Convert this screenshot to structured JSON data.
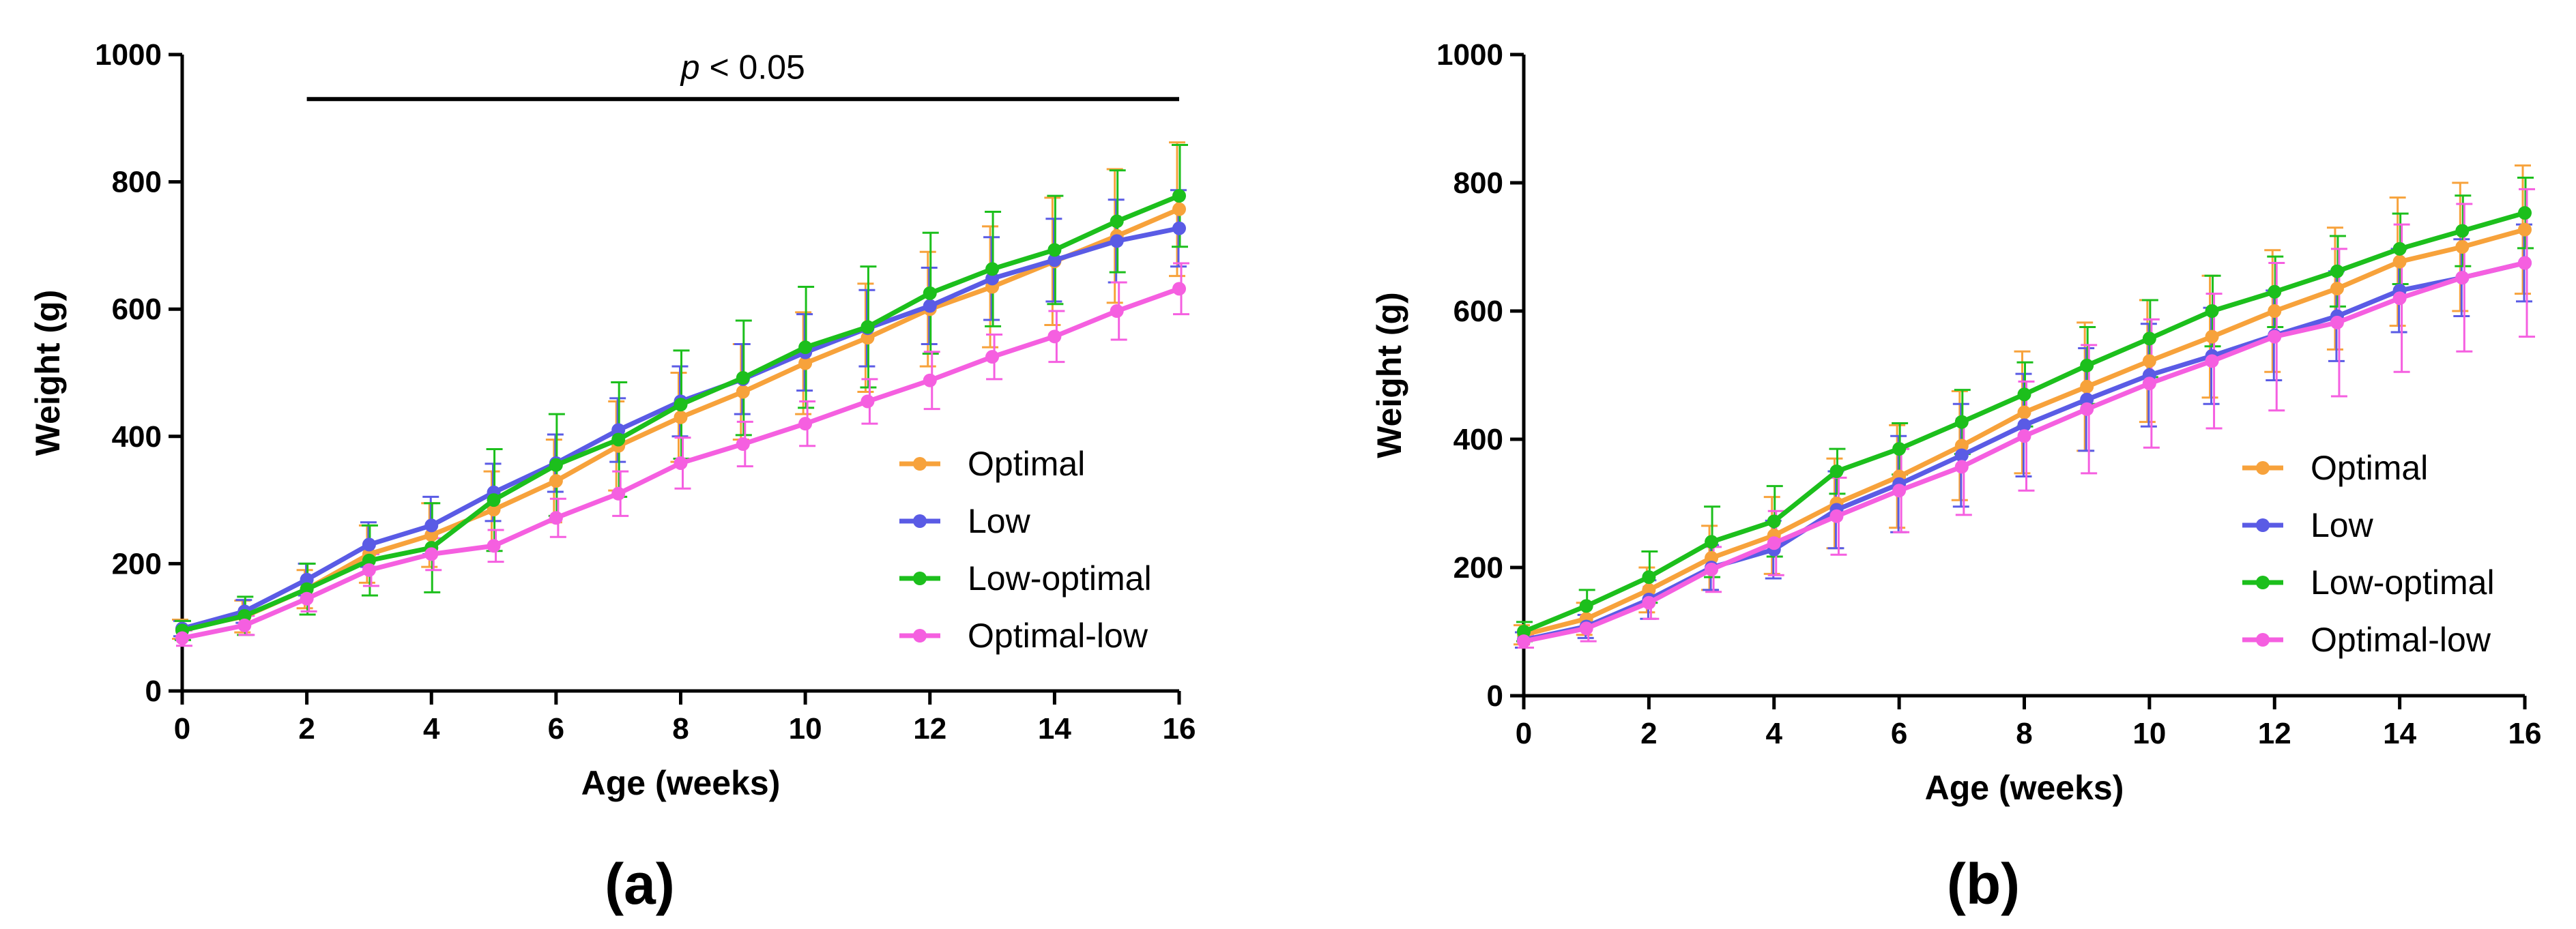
{
  "chart_data": [
    {
      "type": "line",
      "panel_label": "(a)",
      "xlabel": "Age (weeks)",
      "ylabel": "Weight (g)",
      "xlim": [
        0,
        16
      ],
      "ylim": [
        0,
        1000
      ],
      "xticks": [
        0,
        2,
        4,
        6,
        8,
        10,
        12,
        14,
        16
      ],
      "yticks": [
        0,
        200,
        400,
        600,
        800,
        1000
      ],
      "legend_position": "lower-right",
      "annotation": {
        "italic": "p",
        "text": " < 0.05",
        "x_start": 2,
        "x_end": 16,
        "y": 930
      },
      "x": [
        0,
        1,
        2,
        3,
        4,
        5,
        6,
        7,
        8,
        9,
        10,
        11,
        12,
        13,
        14,
        15,
        16
      ],
      "series": [
        {
          "name": "Optimal",
          "color": "#f7a23b",
          "values": [
            97,
            117,
            160,
            215,
            245,
            285,
            330,
            385,
            430,
            470,
            515,
            555,
            600,
            635,
            675,
            715,
            757
          ],
          "errors": [
            15,
            25,
            30,
            45,
            50,
            60,
            65,
            70,
            70,
            75,
            80,
            85,
            90,
            95,
            100,
            105,
            105
          ]
        },
        {
          "name": "Low",
          "color": "#5a5be5",
          "values": [
            98,
            125,
            175,
            230,
            260,
            312,
            358,
            410,
            455,
            490,
            532,
            570,
            605,
            648,
            677,
            707,
            727
          ],
          "errors": [
            12,
            18,
            25,
            35,
            45,
            45,
            45,
            50,
            55,
            55,
            60,
            60,
            60,
            65,
            65,
            65,
            60
          ]
        },
        {
          "name": "Low-optimal",
          "color": "#1cbf1c",
          "values": [
            95,
            118,
            160,
            205,
            225,
            300,
            355,
            395,
            450,
            492,
            540,
            572,
            625,
            663,
            693,
            738,
            778
          ],
          "errors": [
            15,
            30,
            40,
            55,
            70,
            80,
            80,
            90,
            85,
            90,
            95,
            95,
            95,
            90,
            85,
            80,
            80
          ]
        },
        {
          "name": "Optimal-low",
          "color": "#f55fe0",
          "values": [
            83,
            103,
            145,
            190,
            215,
            228,
            272,
            310,
            358,
            388,
            420,
            455,
            488,
            525,
            557,
            597,
            632
          ],
          "errors": [
            12,
            15,
            20,
            25,
            25,
            25,
            30,
            35,
            40,
            35,
            35,
            35,
            45,
            35,
            40,
            45,
            40
          ]
        }
      ]
    },
    {
      "type": "line",
      "panel_label": "(b)",
      "xlabel": "Age (weeks)",
      "ylabel": "Weight (g)",
      "xlim": [
        0,
        16
      ],
      "ylim": [
        0,
        1000
      ],
      "xticks": [
        0,
        2,
        4,
        6,
        8,
        10,
        12,
        14,
        16
      ],
      "yticks": [
        0,
        200,
        400,
        600,
        800,
        1000
      ],
      "legend_position": "lower-right",
      "x": [
        0,
        1,
        2,
        3,
        4,
        5,
        6,
        7,
        8,
        9,
        10,
        11,
        12,
        13,
        14,
        15,
        16
      ],
      "series": [
        {
          "name": "Optimal",
          "color": "#f7a23b",
          "values": [
            95,
            120,
            165,
            215,
            250,
            300,
            342,
            390,
            442,
            482,
            522,
            560,
            600,
            635,
            677,
            700,
            727
          ],
          "errors": [
            15,
            25,
            35,
            50,
            60,
            70,
            80,
            85,
            95,
            100,
            95,
            95,
            95,
            95,
            100,
            100,
            100
          ]
        },
        {
          "name": "Low",
          "color": "#5a5be5",
          "values": [
            87,
            108,
            150,
            200,
            228,
            290,
            330,
            375,
            422,
            462,
            500,
            530,
            562,
            592,
            632,
            652,
            675
          ],
          "errors": [
            12,
            18,
            30,
            35,
            45,
            60,
            75,
            80,
            80,
            80,
            80,
            75,
            70,
            70,
            65,
            60,
            60
          ]
        },
        {
          "name": "Low-optimal",
          "color": "#1cbf1c",
          "values": [
            100,
            140,
            185,
            240,
            272,
            350,
            385,
            427,
            470,
            515,
            557,
            600,
            630,
            662,
            697,
            725,
            753
          ],
          "errors": [
            15,
            25,
            40,
            55,
            55,
            35,
            40,
            50,
            50,
            60,
            60,
            55,
            55,
            55,
            55,
            55,
            55
          ]
        },
        {
          "name": "Optimal-low",
          "color": "#f55fe0",
          "values": [
            85,
            105,
            145,
            197,
            238,
            280,
            320,
            357,
            405,
            447,
            487,
            522,
            560,
            582,
            620,
            652,
            675
          ],
          "errors": [
            10,
            20,
            25,
            35,
            50,
            60,
            65,
            75,
            85,
            100,
            100,
            105,
            115,
            115,
            115,
            115,
            115
          ]
        }
      ]
    }
  ]
}
